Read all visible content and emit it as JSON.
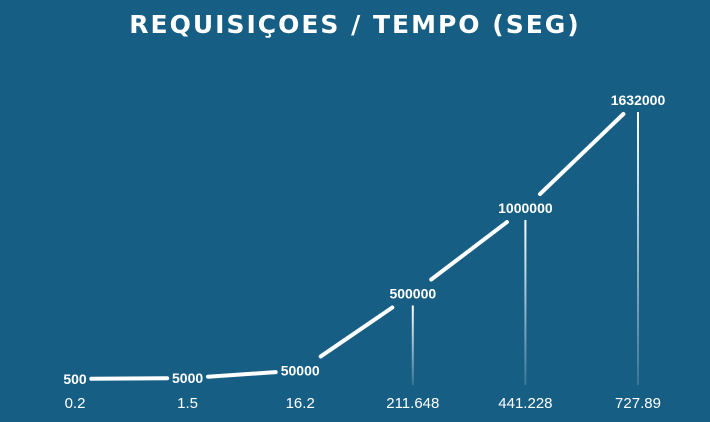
{
  "chart_data": {
    "type": "line",
    "title": "REQUISIÇOES / TEMPO (SEG)",
    "x": [
      "0.2",
      "1.5",
      "16.2",
      "211.648",
      "441.228",
      "727.89"
    ],
    "series": [
      {
        "values": [
          500,
          5000,
          50000,
          500000,
          1000000,
          1632000
        ]
      }
    ],
    "data_labels": [
      "500",
      "5000",
      "50000",
      "500000",
      "1000000",
      "1632000"
    ],
    "xlabel": "",
    "ylabel": "",
    "grid": false,
    "legend": "none",
    "colors": {
      "background": "#165e84",
      "line": "#ffffff",
      "text": "#ffffff"
    }
  }
}
